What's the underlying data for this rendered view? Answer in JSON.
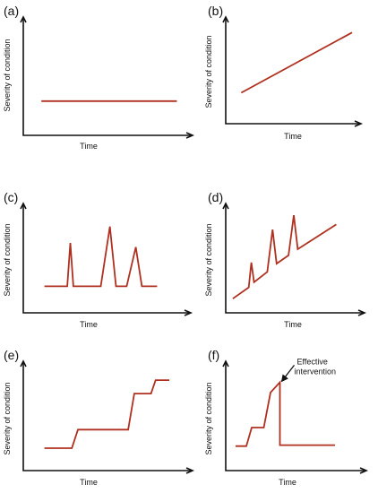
{
  "figure": {
    "colors": {
      "series": "#b03020",
      "axis": "#111111",
      "text": "#111111"
    }
  },
  "chart_data": [
    {
      "type": "line",
      "panel": "(a)",
      "xlabel": "Time",
      "ylabel": "Severity of condition",
      "grid": false,
      "xlim": [
        0,
        1
      ],
      "ylim": [
        0,
        1
      ],
      "series": [
        {
          "x": [
            0.06,
            0.95
          ],
          "values": [
            0.29,
            0.29
          ]
        }
      ]
    },
    {
      "type": "line",
      "panel": "(b)",
      "xlabel": "Time",
      "ylabel": "Severity of condition",
      "grid": false,
      "xlim": [
        0,
        1
      ],
      "ylim": [
        0,
        1
      ],
      "series": [
        {
          "x": [
            0.06,
            0.95
          ],
          "values": [
            0.29,
            0.89
          ]
        }
      ]
    },
    {
      "type": "line",
      "panel": "(c)",
      "xlabel": "Time",
      "ylabel": "Severity of condition",
      "grid": false,
      "xlim": [
        0,
        1
      ],
      "ylim": [
        0,
        1
      ],
      "series": [
        {
          "x": [
            0.08,
            0.23,
            0.25,
            0.27,
            0.45,
            0.51,
            0.55,
            0.62,
            0.68,
            0.72,
            0.82
          ],
          "values": [
            0.24,
            0.24,
            0.66,
            0.24,
            0.24,
            0.82,
            0.24,
            0.24,
            0.62,
            0.24,
            0.24
          ]
        }
      ]
    },
    {
      "type": "line",
      "panel": "(d)",
      "xlabel": "Time",
      "ylabel": "Severity of condition",
      "grid": false,
      "xlim": [
        0,
        1
      ],
      "ylim": [
        0,
        1
      ],
      "series": [
        {
          "x": [
            0.04,
            0.16,
            0.18,
            0.2,
            0.3,
            0.34,
            0.37,
            0.46,
            0.5,
            0.53,
            0.82
          ],
          "values": [
            0.12,
            0.23,
            0.47,
            0.28,
            0.38,
            0.79,
            0.46,
            0.54,
            0.93,
            0.6,
            0.84
          ]
        }
      ]
    },
    {
      "type": "line",
      "panel": "(e)",
      "xlabel": "Time",
      "ylabel": "Severity of condition",
      "grid": false,
      "xlim": [
        0,
        1
      ],
      "ylim": [
        0,
        1
      ],
      "series": [
        {
          "x": [
            0.08,
            0.26,
            0.3,
            0.63,
            0.67,
            0.78,
            0.81,
            0.9
          ],
          "values": [
            0.2,
            0.2,
            0.38,
            0.38,
            0.73,
            0.73,
            0.86,
            0.86
          ]
        }
      ]
    },
    {
      "type": "line",
      "panel": "(f)",
      "xlabel": "Time",
      "ylabel": "Severity of condition",
      "grid": false,
      "xlim": [
        0,
        1
      ],
      "ylim": [
        0,
        1
      ],
      "series": [
        {
          "x": [
            0.06,
            0.14,
            0.18,
            0.27,
            0.32,
            0.39,
            0.39,
            0.8
          ],
          "values": [
            0.22,
            0.22,
            0.4,
            0.4,
            0.74,
            0.84,
            0.23,
            0.23
          ]
        }
      ],
      "annotation": {
        "text": [
          "Effective",
          "intervention"
        ],
        "x": 0.39,
        "y": 0.84
      }
    }
  ]
}
